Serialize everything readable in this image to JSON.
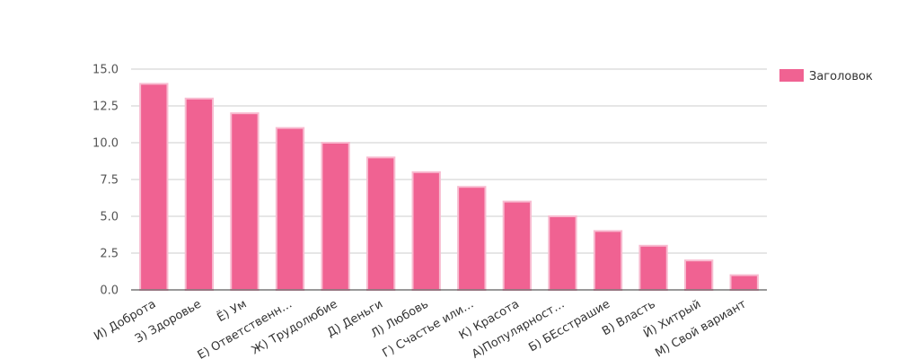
{
  "chart_data": {
    "type": "bar",
    "categories": [
      "И) Доброта",
      "З) Здоровье",
      "Ё) Ум",
      "Е) Ответственн…",
      "Ж) Трудолюбие",
      "Д) Деньги",
      "Л) Любовь",
      "Г) Счастье или…",
      "К) Красота",
      "А)Популярност…",
      "Б) БЕсстрашие",
      "В) Власть",
      "Й) Хитрый",
      "М) Свой вариант"
    ],
    "series": [
      {
        "name": "Заголовок",
        "values": [
          14,
          13,
          12,
          11,
          10,
          9,
          8,
          7,
          6,
          5,
          4,
          3,
          2,
          1
        ]
      }
    ],
    "ylim": [
      0,
      15
    ],
    "yticks": [
      "0.0",
      "2.5",
      "5.0",
      "7.5",
      "10.0",
      "12.5",
      "15.0"
    ],
    "ytick_values": [
      0,
      2.5,
      5,
      7.5,
      10,
      12.5,
      15
    ],
    "grid": true,
    "legend_position": "top-right",
    "colors": {
      "bar_fill": "#f06292",
      "bar_stroke": "#f8bbd0",
      "grid": "#cccccc",
      "axis": "#333333"
    }
  }
}
